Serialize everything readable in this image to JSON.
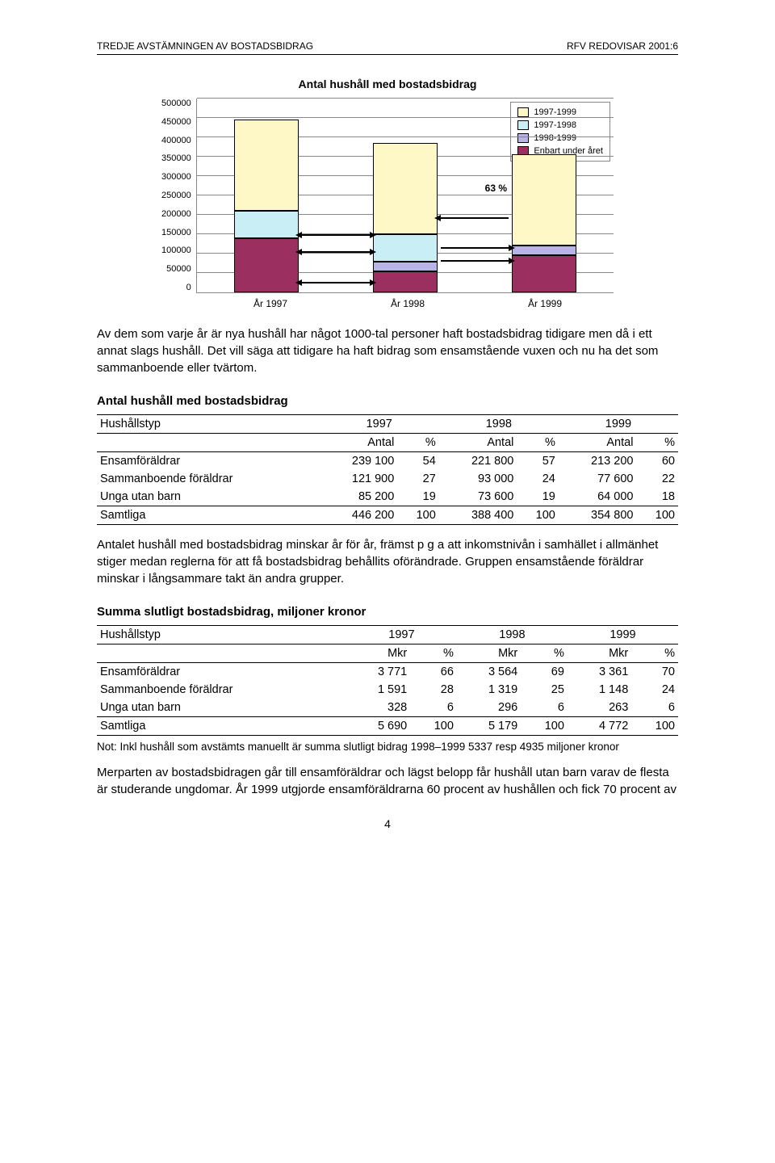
{
  "header": {
    "left": "TREDJE AVSTÄMNINGEN AV BOSTADSBIDRAG",
    "right": "RFV REDOVISAR 2001:6"
  },
  "chart": {
    "title": "Antal hushåll med bostadsbidrag",
    "type": "stacked-bar",
    "y": {
      "max": 500000,
      "step": 50000,
      "labels": [
        "500000",
        "450000",
        "400000",
        "350000",
        "300000",
        "250000",
        "200000",
        "150000",
        "100000",
        "50000",
        "0"
      ]
    },
    "x_labels": [
      "År 1997",
      "År 1998",
      "År 1999"
    ],
    "legend_labels": [
      "1997-1999",
      "1997-1998",
      "1998-1999",
      "Enbart under året"
    ],
    "colors": {
      "1997-1999": "#fdf8c6",
      "1997-1998": "#c9eef6",
      "1998-1999": "#b8b4e6",
      "enbart": "#9b2f5f",
      "border": "#000000",
      "grid": "#888888",
      "bg": "#ffffff"
    },
    "bars": [
      {
        "segments": [
          {
            "key": "enbart",
            "v": 140000
          },
          {
            "key": "1997-1998",
            "v": 70000
          },
          {
            "key": "1997-1999",
            "v": 236000
          }
        ]
      },
      {
        "segments": [
          {
            "key": "enbart",
            "v": 55000
          },
          {
            "key": "1998-1999",
            "v": 25000
          },
          {
            "key": "1997-1998",
            "v": 70000
          },
          {
            "key": "1997-1999",
            "v": 236000
          }
        ]
      },
      {
        "segments": [
          {
            "key": "enbart",
            "v": 95000
          },
          {
            "key": "1998-1999",
            "v": 25000
          },
          {
            "key": "1997-1999",
            "v": 236000
          }
        ]
      }
    ],
    "annotation": {
      "label": "63 %"
    }
  },
  "para1": "Av dem som varje år är nya hushåll har något 1000-tal personer haft bostadsbidrag tidigare men då i ett annat slags hushåll. Det vill säga att tidigare ha haft bidrag som ensamstående vuxen och nu ha det som sammanboende eller tvärtom.",
  "table1": {
    "title": "Antal hushåll med bostadsbidrag",
    "head1": [
      "Hushållstyp",
      "1997",
      "1998",
      "1999"
    ],
    "head2": [
      "",
      "Antal",
      "%",
      "Antal",
      "%",
      "Antal",
      "%"
    ],
    "rows": [
      [
        "Ensamföräldrar",
        "239 100",
        "54",
        "221 800",
        "57",
        "213 200",
        "60"
      ],
      [
        "Sammanboende föräldrar",
        "121 900",
        "27",
        "93 000",
        "24",
        "77 600",
        "22"
      ],
      [
        "Unga utan barn",
        "85 200",
        "19",
        "73 600",
        "19",
        "64 000",
        "18"
      ],
      [
        "Samtliga",
        "446 200",
        "100",
        "388 400",
        "100",
        "354 800",
        "100"
      ]
    ]
  },
  "para2": "Antalet hushåll med bostadsbidrag minskar år för år, främst p g a att inkomstnivån i samhället i allmänhet stiger medan reglerna för att få bostadsbidrag behållits oförändrade. Gruppen ensamstående föräldrar minskar i långsammare takt än andra grupper.",
  "table2": {
    "title": "Summa slutligt bostadsbidrag, miljoner kronor",
    "head1": [
      "Hushållstyp",
      "1997",
      "1998",
      "1999"
    ],
    "head2": [
      "",
      "Mkr",
      "%",
      "Mkr",
      "%",
      "Mkr",
      "%"
    ],
    "rows": [
      [
        "Ensamföräldrar",
        "3 771",
        "66",
        "3 564",
        "69",
        "3 361",
        "70"
      ],
      [
        "Sammanboende föräldrar",
        "1 591",
        "28",
        "1 319",
        "25",
        "1 148",
        "24"
      ],
      [
        "Unga utan barn",
        "328",
        "6",
        "296",
        "6",
        "263",
        "6"
      ],
      [
        "Samtliga",
        "5 690",
        "100",
        "5 179",
        "100",
        "4 772",
        "100"
      ]
    ],
    "note": "Not: Inkl hushåll som avstämts manuellt är summa slutligt bidrag 1998–1999 5337 resp 4935 miljoner kronor"
  },
  "para3": "Merparten av bostadsbidragen går till ensamföräldrar och lägst belopp får hushåll utan barn varav de flesta är studerande ungdomar. År 1999 utgjorde ensamföräldrarna 60 procent av hushållen och fick 70 procent av",
  "page_number": "4"
}
